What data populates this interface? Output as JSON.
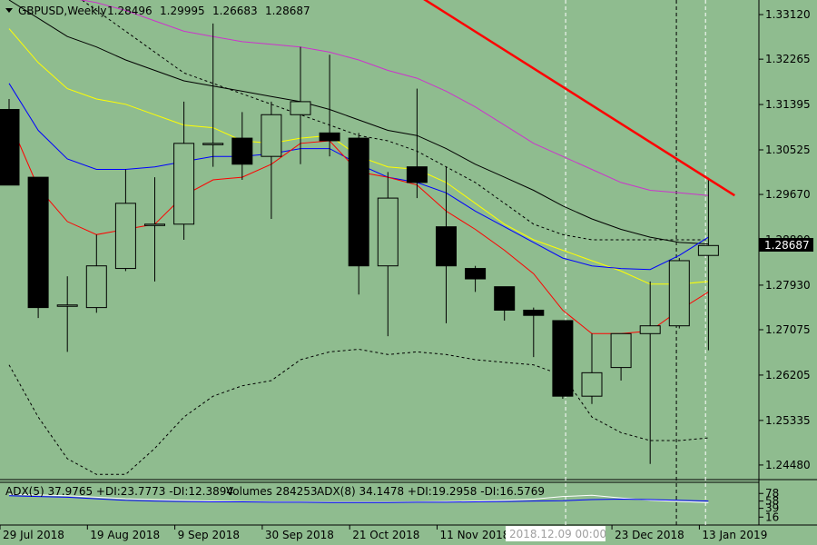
{
  "header": {
    "symbol": "GBPUSD,Weekly",
    "open": "1.28496",
    "high": "1.29995",
    "low": "1.26683",
    "close": "1.28687"
  },
  "indicator_text": {
    "adx5": "ADX(5) 37.9765 +DI:23.7773 -DI:12.3894",
    "volumes": "Volumes 284253",
    "adx8": "ADX(8) 34.1478 +DI:19.2958 -DI:16.5769"
  },
  "cursor_time": "2018.12.09 00:00",
  "price_marker": "1.28687",
  "colors": {
    "background": "#8fbc8f",
    "bear_candle": "#000000",
    "bull_candle": "#8fbc8f",
    "ma_fast": "#ff0000",
    "ma_blue": "#0000ff",
    "ma_yellow": "#ffff00",
    "ma_black": "#000000",
    "ma_magenta": "#cc33cc",
    "trendline": "#ff0000",
    "adx_main": "#0000ff",
    "adx_secondary": "#ffffff"
  },
  "chart_data": {
    "type": "candlestick",
    "price_axis": {
      "ticks": [
        "1.33120",
        "1.32265",
        "1.31395",
        "1.30525",
        "1.29670",
        "1.28800",
        "1.27930",
        "1.27075",
        "1.26205",
        "1.25335",
        "1.24480"
      ],
      "range": [
        1.242,
        1.334
      ]
    },
    "time_axis": {
      "labels": [
        "29 Jul 2018",
        "19 Aug 2018",
        "9 Sep 2018",
        "30 Sep 2018",
        "21 Oct 2018",
        "11 Nov 2018",
        "23 Dec 2018",
        "13 Jan 2019"
      ],
      "label_index": [
        0,
        3,
        6,
        9,
        12,
        15,
        21,
        24
      ]
    },
    "candles": [
      {
        "o": 1.313,
        "h": 1.315,
        "l": 1.2985,
        "c": 1.2985
      },
      {
        "o": 1.3,
        "h": 1.3,
        "l": 1.273,
        "c": 1.275
      },
      {
        "o": 1.2755,
        "h": 1.281,
        "l": 1.2665,
        "c": 1.2755
      },
      {
        "o": 1.275,
        "h": 1.289,
        "l": 1.274,
        "c": 1.283
      },
      {
        "o": 1.2825,
        "h": 1.3015,
        "l": 1.282,
        "c": 1.295
      },
      {
        "o": 1.291,
        "h": 1.3,
        "l": 1.28,
        "c": 1.291
      },
      {
        "o": 1.291,
        "h": 1.3145,
        "l": 1.288,
        "c": 1.3065
      },
      {
        "o": 1.3065,
        "h": 1.3295,
        "l": 1.302,
        "c": 1.3065
      },
      {
        "o": 1.3075,
        "h": 1.3125,
        "l": 1.2995,
        "c": 1.3025
      },
      {
        "o": 1.304,
        "h": 1.3145,
        "l": 1.292,
        "c": 1.312
      },
      {
        "o": 1.312,
        "h": 1.325,
        "l": 1.3025,
        "c": 1.3145
      },
      {
        "o": 1.3085,
        "h": 1.3235,
        "l": 1.304,
        "c": 1.307
      },
      {
        "o": 1.3075,
        "h": 1.3085,
        "l": 1.2775,
        "c": 1.283
      },
      {
        "o": 1.283,
        "h": 1.301,
        "l": 1.2695,
        "c": 1.296
      },
      {
        "o": 1.302,
        "h": 1.317,
        "l": 1.296,
        "c": 1.299
      },
      {
        "o": 1.2905,
        "h": 1.302,
        "l": 1.272,
        "c": 1.283
      },
      {
        "o": 1.2825,
        "h": 1.283,
        "l": 1.278,
        "c": 1.2805
      },
      {
        "o": 1.279,
        "h": 1.279,
        "l": 1.2725,
        "c": 1.2745
      },
      {
        "o": 1.2745,
        "h": 1.275,
        "l": 1.2655,
        "c": 1.2735
      },
      {
        "o": 1.2725,
        "h": 1.2725,
        "l": 1.2575,
        "c": 1.258
      },
      {
        "o": 1.258,
        "h": 1.27,
        "l": 1.2565,
        "c": 1.2625
      },
      {
        "o": 1.2635,
        "h": 1.27,
        "l": 1.261,
        "c": 1.27
      },
      {
        "o": 1.27,
        "h": 1.28,
        "l": 1.245,
        "c": 1.2715
      },
      {
        "o": 1.2715,
        "h": 1.2845,
        "l": 1.271,
        "c": 1.284
      },
      {
        "o": 1.285,
        "h": 1.2999,
        "l": 1.2668,
        "c": 1.2869
      }
    ],
    "moving_averages": {
      "red": [
        1.311,
        1.298,
        1.2915,
        1.289,
        1.29,
        1.291,
        1.2965,
        1.2995,
        1.3,
        1.3025,
        1.3065,
        1.307,
        1.301,
        1.3,
        1.2985,
        1.2935,
        1.29,
        1.286,
        1.2815,
        1.2745,
        1.27,
        1.27,
        1.2705,
        1.2745,
        1.278
      ],
      "blue": [
        1.318,
        1.309,
        1.3035,
        1.3015,
        1.3015,
        1.302,
        1.303,
        1.304,
        1.304,
        1.3045,
        1.3055,
        1.3055,
        1.3025,
        1.3,
        1.299,
        1.297,
        1.2935,
        1.2905,
        1.2875,
        1.2845,
        1.283,
        1.2825,
        1.2823,
        1.285,
        1.2885
      ],
      "yellow": [
        1.3285,
        1.322,
        1.317,
        1.315,
        1.314,
        1.312,
        1.31,
        1.3095,
        1.307,
        1.3065,
        1.3075,
        1.308,
        1.304,
        1.302,
        1.3015,
        1.299,
        1.295,
        1.291,
        1.288,
        1.286,
        1.284,
        1.282,
        1.2795,
        1.2795,
        1.28
      ],
      "black": [
        1.334,
        1.3305,
        1.327,
        1.325,
        1.3225,
        1.3205,
        1.3185,
        1.3175,
        1.3165,
        1.3155,
        1.3145,
        1.313,
        1.311,
        1.309,
        1.308,
        1.3055,
        1.3025,
        1.3,
        1.2975,
        1.2945,
        1.292,
        1.29,
        1.2885,
        1.2875,
        1.2872
      ],
      "magenta": [
        1.336,
        1.3355,
        1.3345,
        1.3335,
        1.332,
        1.33,
        1.328,
        1.327,
        1.326,
        1.3255,
        1.325,
        1.324,
        1.3225,
        1.3205,
        1.319,
        1.3165,
        1.3135,
        1.31,
        1.3065,
        1.304,
        1.3015,
        1.299,
        1.2975,
        1.297,
        1.2965
      ],
      "band_upper": [
        1.343,
        1.34,
        1.336,
        1.332,
        1.328,
        1.324,
        1.32,
        1.318,
        1.316,
        1.314,
        1.312,
        1.31,
        1.308,
        1.307,
        1.305,
        1.302,
        1.299,
        1.295,
        1.291,
        1.289,
        1.288,
        1.288,
        1.288,
        1.288,
        1.288
      ],
      "band_lower": [
        1.264,
        1.254,
        1.246,
        1.243,
        1.243,
        1.248,
        1.254,
        1.258,
        1.26,
        1.261,
        1.265,
        1.2665,
        1.267,
        1.266,
        1.2665,
        1.266,
        1.265,
        1.2645,
        1.264,
        1.262,
        1.254,
        1.251,
        1.2495,
        1.2495,
        1.25
      ]
    },
    "trendline": {
      "from": [
        14,
        1.335
      ],
      "to": [
        24.9,
        1.2965
      ]
    },
    "vertical_dashes": [
      19.1,
      22.9,
      23.9
    ],
    "adx_panel": {
      "ticks": [
        "78",
        "58",
        "39",
        "16"
      ],
      "range": [
        0,
        100
      ],
      "main": [
        72,
        70,
        68,
        64,
        60,
        58,
        57,
        56,
        56,
        55,
        55,
        54,
        54,
        54,
        55,
        55,
        56,
        57,
        58,
        59,
        62,
        63,
        62,
        60,
        58
      ],
      "secondary": [
        76,
        74,
        72,
        68,
        64,
        62,
        60,
        58,
        57,
        56,
        56,
        55,
        55,
        55,
        56,
        57,
        58,
        60,
        63,
        70,
        73,
        66,
        60,
        57,
        54
      ]
    }
  }
}
